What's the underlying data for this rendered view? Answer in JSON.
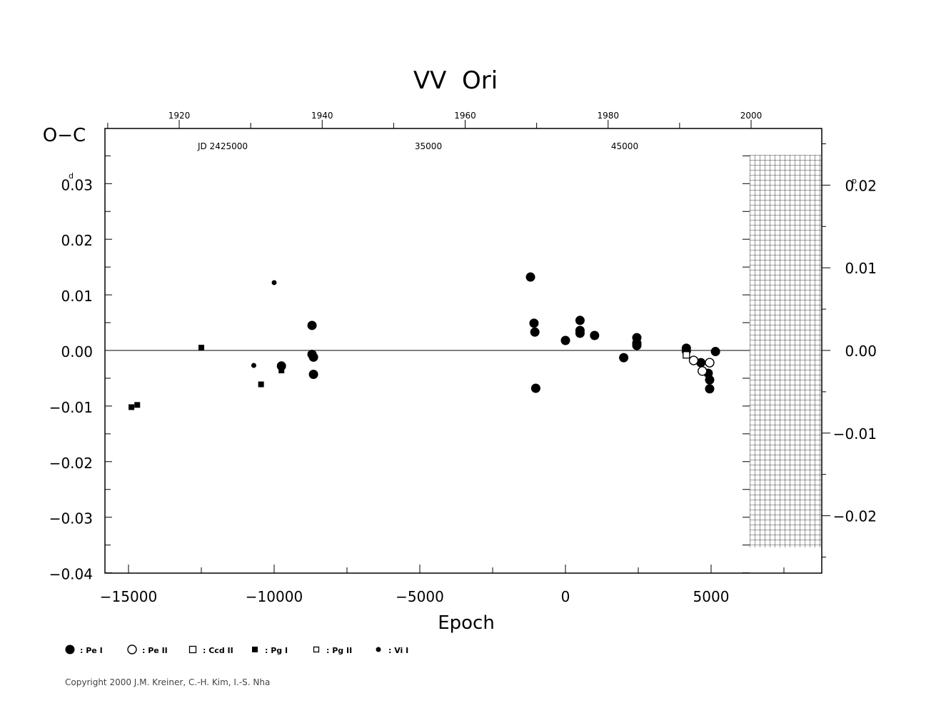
{
  "chart_data": {
    "type": "scatter",
    "title": "VV  Ori",
    "ylabel": "O−C",
    "xlabel": "Epoch",
    "ylabel_unit_left": "d",
    "ylabel_unit_right": "p",
    "xlim": [
      -15800,
      8900
    ],
    "ylim": [
      -0.04,
      0.04
    ],
    "left_ticks": [
      "0.03",
      "0.02",
      "0.01",
      "0.00",
      "−0.01",
      "−0.02",
      "−0.03",
      "−0.04"
    ],
    "left_tick_values": [
      0.03,
      0.02,
      0.01,
      0.0,
      -0.01,
      -0.02,
      -0.03,
      -0.04
    ],
    "right_ticks": [
      "0.02",
      "0.01",
      "0.00",
      "−0.01",
      "−0.02"
    ],
    "right_tick_values": [
      0.02,
      0.01,
      0.0,
      -0.01,
      -0.02
    ],
    "right_scale_factor": 0.675,
    "x_ticks": [
      "−15000",
      "−10000",
      "−5000",
      "0",
      "5000"
    ],
    "x_tick_values": [
      -15000,
      -10000,
      -5000,
      0,
      5000
    ],
    "top_year_labels": [
      "1920",
      "1940",
      "1960",
      "1980",
      "2000"
    ],
    "top_year_values": [
      1920,
      1940,
      1960,
      1980,
      2000
    ],
    "year_zero_epoch": 0,
    "year_ref": {
      "year": 1974,
      "epoch": 2
    },
    "days_per_epoch_year": 0.0197,
    "jd_labels": [
      "JD  2425000",
      "35000",
      "45000"
    ],
    "jd_label_epochs": [
      -12000,
      -4750,
      2040
    ],
    "future_shade": true,
    "legend": [
      {
        "symbol": "filled-circle-large",
        "label": ": Pe I"
      },
      {
        "symbol": "open-circle",
        "label": ": Pe II"
      },
      {
        "symbol": "open-square",
        "label": ": Ccd II"
      },
      {
        "symbol": "filled-square",
        "label": ": Pg I"
      },
      {
        "symbol": "open-square-small",
        "label": ": Pg II"
      },
      {
        "symbol": "filled-circle-small",
        "label": ": Vi I"
      }
    ],
    "series": [
      {
        "name": "Pe I",
        "symbol": "filled-circle-large",
        "points": [
          [
            -8700,
            0.0045
          ],
          [
            -8700,
            -0.0007
          ],
          [
            -8650,
            -0.0012
          ],
          [
            -8650,
            -0.0043
          ],
          [
            -9750,
            -0.0028
          ],
          [
            -1200,
            0.0132
          ],
          [
            -1080,
            0.0049
          ],
          [
            -1050,
            0.0033
          ],
          [
            -1020,
            -0.0068
          ],
          [
            0,
            0.0018
          ],
          [
            500,
            0.0054
          ],
          [
            500,
            0.0036
          ],
          [
            500,
            0.0031
          ],
          [
            1000,
            0.0027
          ],
          [
            2000,
            -0.0013
          ],
          [
            2450,
            0.0023
          ],
          [
            2450,
            0.0013
          ],
          [
            2450,
            0.0009
          ],
          [
            4150,
            0.0004
          ],
          [
            4150,
            -0.0001
          ],
          [
            4650,
            -0.0022
          ],
          [
            4900,
            -0.0041
          ],
          [
            4950,
            -0.0053
          ],
          [
            4950,
            -0.0069
          ],
          [
            5150,
            -0.0002
          ]
        ]
      },
      {
        "name": "Pe II",
        "symbol": "open-circle",
        "points": [
          [
            4400,
            -0.0018
          ],
          [
            4700,
            -0.0037
          ],
          [
            4950,
            -0.0022
          ]
        ]
      },
      {
        "name": "Ccd II",
        "symbol": "open-square",
        "points": [
          [
            4150,
            -0.0008
          ]
        ]
      },
      {
        "name": "Pg I",
        "symbol": "filled-square",
        "points": [
          [
            -14900,
            -0.0102
          ],
          [
            -14700,
            -0.0098
          ],
          [
            -12500,
            0.0005
          ],
          [
            -10450,
            -0.0061
          ],
          [
            -9750,
            -0.0036
          ]
        ]
      },
      {
        "name": "Pg II",
        "symbol": "open-square-small",
        "points": []
      },
      {
        "name": "Vi I",
        "symbol": "filled-circle-small",
        "points": [
          [
            -10000,
            0.0122
          ],
          [
            -10700,
            -0.0027
          ]
        ]
      }
    ]
  },
  "footer": {
    "copyright": "Copyright 2000 J.M. Kreiner, C.-H. Kim, I.-S. Nha"
  }
}
